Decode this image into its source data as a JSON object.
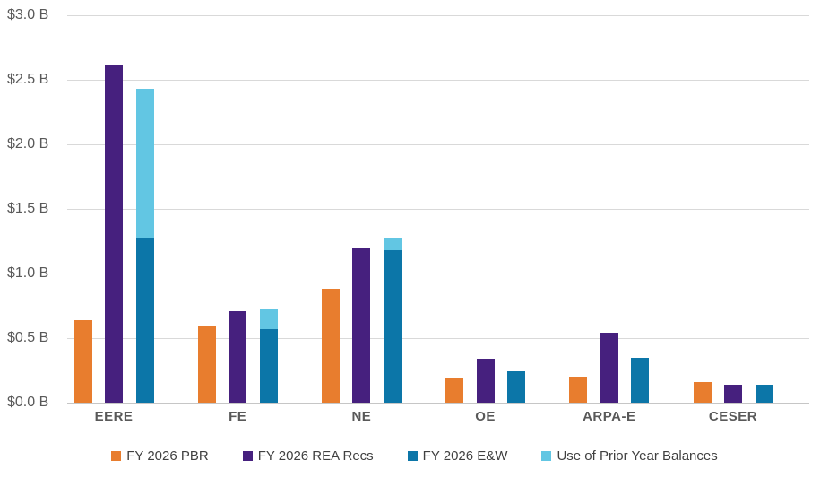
{
  "chart_data": {
    "type": "bar",
    "title": "",
    "xlabel": "",
    "ylabel": "",
    "categories": [
      "EERE",
      "FE",
      "NE",
      "OE",
      "ARPA-E",
      "CESER"
    ],
    "series": [
      {
        "name": "FY 2026 PBR",
        "color": "#E87D2E",
        "stacked_on": null,
        "values": [
          0.64,
          0.6,
          0.88,
          0.19,
          0.2,
          0.16
        ]
      },
      {
        "name": "FY 2026 REA Recs",
        "color": "#46207E",
        "stacked_on": null,
        "values": [
          2.62,
          0.71,
          1.2,
          0.34,
          0.54,
          0.14
        ]
      },
      {
        "name": "FY 2026 E&W",
        "color": "#0C76A8",
        "stacked_on": null,
        "values": [
          1.28,
          0.57,
          1.18,
          0.24,
          0.35,
          0.14
        ]
      },
      {
        "name": "Use of Prior Year Balances",
        "color": "#62C6E3",
        "stacked_on": "FY 2026 E&W",
        "values": [
          1.15,
          0.15,
          0.1,
          0.0,
          0.0,
          0.0
        ]
      }
    ],
    "stack_totals_ew_plus_prior": [
      2.43,
      0.72,
      1.28,
      0.24,
      0.35,
      0.14
    ],
    "ylim": [
      0.0,
      3.0
    ],
    "ytick_step": 0.5,
    "ytick_labels": [
      "$0.0 B",
      "$0.5 B",
      "$1.0 B",
      "$1.5 B",
      "$2.0 B",
      "$2.5 B",
      "$3.0 B"
    ],
    "grid": true,
    "legend_position": "bottom",
    "gridline_color": "#d9d9d9",
    "axis_text_color": "#595959",
    "legend_text_color": "#404040"
  }
}
